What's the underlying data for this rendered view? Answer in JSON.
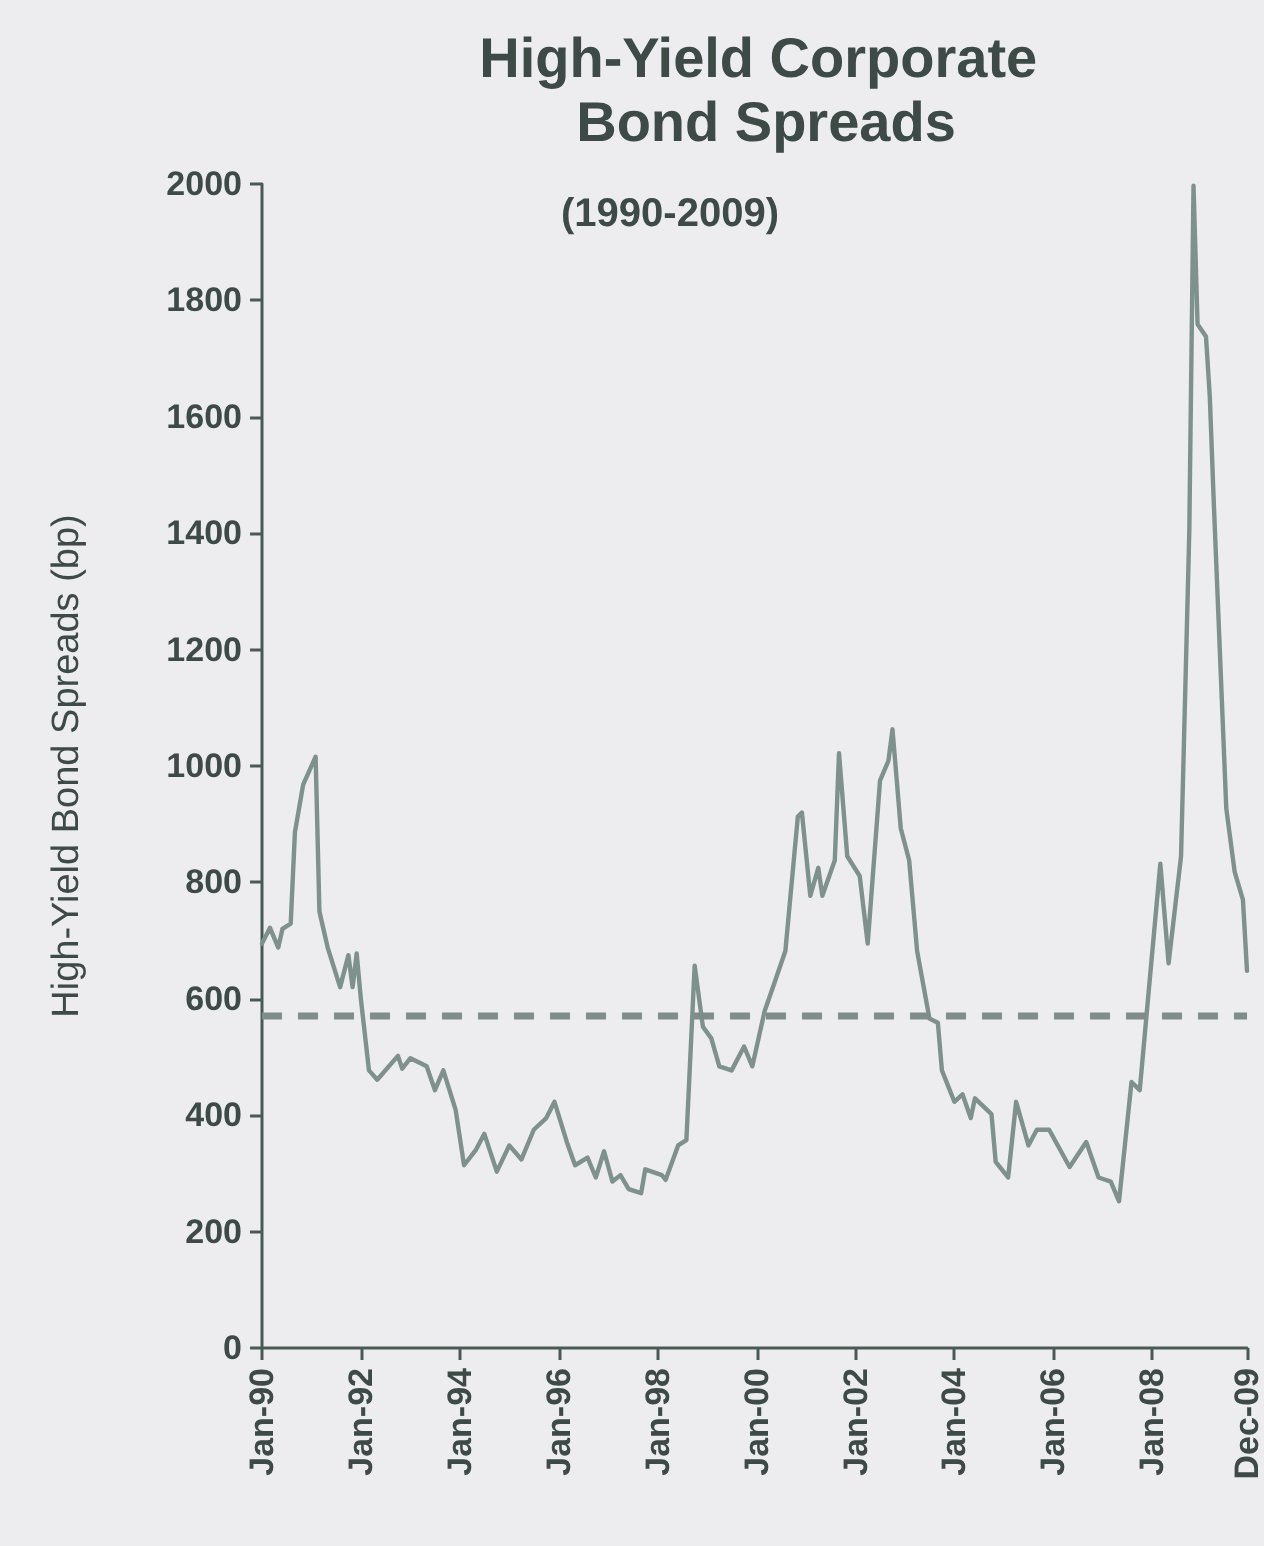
{
  "chart_data": {
    "type": "line",
    "title": "High-Yield Corporate Bond Spreads",
    "subtitle": "(1990-2009)",
    "ylabel": "High-Yield Bond Spreads (bp)",
    "x": [
      "1990-01",
      "1990-03",
      "1990-05",
      "1990-06",
      "1990-08",
      "1990-09",
      "1990-11",
      "1991-02",
      "1991-03",
      "1991-05",
      "1991-08",
      "1991-10",
      "1991-11",
      "1991-12",
      "1992-01",
      "1992-03",
      "1992-05",
      "1992-10",
      "1992-11",
      "1993-01",
      "1993-05",
      "1993-07",
      "1993-09",
      "1993-12",
      "1994-02",
      "1994-05",
      "1994-07",
      "1994-10",
      "1995-01",
      "1995-04",
      "1995-07",
      "1995-10",
      "1995-12",
      "1996-03",
      "1996-05",
      "1996-08",
      "1996-10",
      "1996-12",
      "1997-02",
      "1997-04",
      "1997-06",
      "1997-09",
      "1997-10",
      "1998-02",
      "1998-03",
      "1998-06",
      "1998-08",
      "1998-10",
      "1998-12",
      "1999-02",
      "1999-04",
      "1999-07",
      "1999-10",
      "1999-12",
      "2000-03",
      "2000-05",
      "2000-08",
      "2000-11",
      "2000-12",
      "2001-02",
      "2001-04",
      "2001-05",
      "2001-08",
      "2001-09",
      "2001-11",
      "2002-02",
      "2002-04",
      "2002-07",
      "2002-09",
      "2002-10",
      "2002-12",
      "2003-02",
      "2003-04",
      "2003-07",
      "2003-09",
      "2003-10",
      "2004-01",
      "2004-03",
      "2004-05",
      "2004-06",
      "2004-10",
      "2004-11",
      "2005-02",
      "2005-04",
      "2005-07",
      "2005-09",
      "2005-12",
      "2006-05",
      "2006-09",
      "2006-12",
      "2007-03",
      "2007-05",
      "2007-08",
      "2007-10",
      "2007-12",
      "2008-03",
      "2008-05",
      "2008-08",
      "2008-10",
      "2008-11",
      "2008-12",
      "2009-02",
      "2009-03",
      "2009-04",
      "2009-07",
      "2009-09",
      "2009-11",
      "2009-12"
    ],
    "series": [
      {
        "color": "#7f918c",
        "values": [
          695,
          722,
          688,
          720,
          729,
          886,
          968,
          1016,
          750,
          688,
          620,
          675,
          620,
          678,
          600,
          477,
          461,
          502,
          480,
          498,
          484,
          443,
          477,
          409,
          314,
          341,
          368,
          303,
          348,
          324,
          375,
          395,
          423,
          354,
          314,
          327,
          293,
          338,
          286,
          297,
          273,
          266,
          307,
          297,
          289,
          348,
          357,
          657,
          552,
          532,
          484,
          477,
          518,
          484,
          579,
          620,
          682,
          913,
          920,
          777,
          825,
          777,
          838,
          1022,
          845,
          811,
          695,
          975,
          1009,
          1063,
          893,
          838,
          682,
          566,
          559,
          477,
          423,
          436,
          395,
          429,
          402,
          320,
          293,
          423,
          348,
          375,
          375,
          311,
          354,
          293,
          286,
          252,
          457,
          443,
          600,
          832,
          661,
          845,
          1404,
          1997,
          1759,
          1738,
          1636,
          1445,
          927,
          818,
          770,
          648
        ]
      }
    ],
    "xlim": [
      "1990-01",
      "2009-12"
    ],
    "xticks": [
      {
        "value": "1990-01",
        "label": "Jan-90"
      },
      {
        "value": "1992-01",
        "label": "Jan-92"
      },
      {
        "value": "1994-01",
        "label": "Jan-94"
      },
      {
        "value": "1996-01",
        "label": "Jan-96"
      },
      {
        "value": "1998-01",
        "label": "Jan-98"
      },
      {
        "value": "2000-01",
        "label": "Jan-00"
      },
      {
        "value": "2002-01",
        "label": "Jan-02"
      },
      {
        "value": "2004-01",
        "label": "Jan-04"
      },
      {
        "value": "2006-01",
        "label": "Jan-06"
      },
      {
        "value": "2008-01",
        "label": "Jan-08"
      },
      {
        "value": "2009-12",
        "label": "Dec-09"
      }
    ],
    "ylim": [
      0,
      2000
    ],
    "yticks": [
      0,
      200,
      400,
      600,
      800,
      1000,
      1200,
      1400,
      1600,
      1800,
      2000
    ],
    "ref_lines": [
      {
        "axis": "y",
        "value": 570,
        "color": "#7f8c88",
        "line_style": "dashed"
      }
    ],
    "grid": false,
    "marker": "none",
    "line_style": "solid"
  }
}
